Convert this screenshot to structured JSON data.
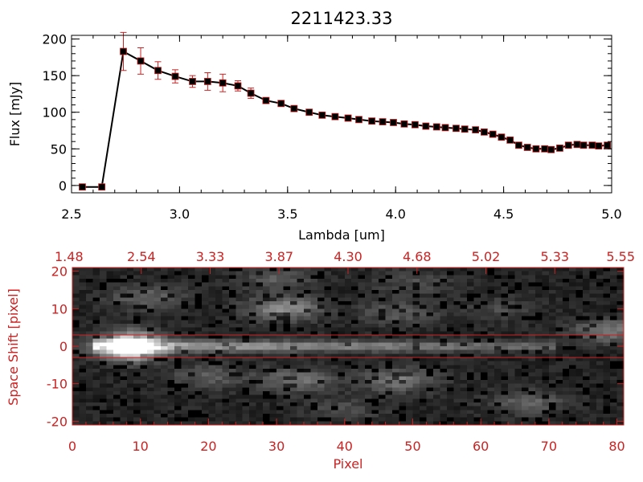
{
  "chart_data": [
    {
      "type": "line",
      "title": "2211423.33",
      "xlabel": "Lambda [um]",
      "ylabel": "Flux [mJy]",
      "xlim": [
        2.5,
        5.0
      ],
      "ylim": [
        -10,
        205
      ],
      "x_ticks": [
        "2.5",
        "3.0",
        "3.5",
        "4.0",
        "4.5",
        "5.0"
      ],
      "y_ticks": [
        "0",
        "50",
        "100",
        "150",
        "200"
      ],
      "grid": false,
      "colors": {
        "line": "#000000",
        "marker": "#000000",
        "error_bar": "#cc2222",
        "marker_edge": "#cc2222"
      },
      "series": [
        {
          "x": [
            2.55,
            2.64,
            2.74,
            2.82,
            2.9,
            2.98,
            3.06,
            3.13,
            3.2,
            3.27,
            3.33,
            3.4,
            3.47,
            3.53,
            3.6,
            3.66,
            3.72,
            3.78,
            3.83,
            3.89,
            3.94,
            3.99,
            4.04,
            4.09,
            4.14,
            4.19,
            4.23,
            4.28,
            4.32,
            4.37,
            4.41,
            4.45,
            4.49,
            4.53,
            4.57,
            4.61,
            4.65,
            4.69,
            4.72,
            4.76,
            4.8,
            4.84,
            4.87,
            4.91,
            4.94,
            4.98
          ],
          "y": [
            -2,
            -2,
            183,
            170,
            157,
            149,
            142,
            142,
            140,
            136,
            126,
            116,
            112,
            105,
            100,
            96,
            94,
            92,
            90,
            88,
            87,
            86,
            84,
            83,
            81,
            80,
            79,
            78,
            77,
            76,
            73,
            70,
            66,
            62,
            55,
            52,
            50,
            50,
            49,
            51,
            55,
            56,
            55,
            55,
            54,
            55
          ],
          "err": [
            0,
            0,
            26,
            18,
            12,
            9,
            8,
            12,
            12,
            7,
            7,
            4,
            3,
            3,
            2,
            2,
            2,
            2,
            2,
            2,
            2,
            2,
            2,
            2,
            2,
            2,
            2,
            2,
            2,
            2,
            2,
            2,
            2,
            2,
            2,
            2,
            2,
            2,
            2,
            2,
            2,
            2,
            2,
            2,
            2,
            2
          ]
        }
      ]
    },
    {
      "type": "heatmap",
      "xlabel": "Pixel",
      "ylabel": "Space Shift [pixel]",
      "xlim": [
        0,
        81
      ],
      "ylim": [
        -21,
        21
      ],
      "x_ticks": [
        "0",
        "10",
        "20",
        "30",
        "40",
        "50",
        "60",
        "70",
        "80"
      ],
      "y_ticks": [
        "-20",
        "-10",
        "0",
        "10",
        "20"
      ],
      "top_ticks": [
        "1.48",
        "2.54",
        "3.33",
        "3.87",
        "4.30",
        "4.68",
        "5.02",
        "5.33",
        "5.55"
      ],
      "colormap": "grayscale",
      "colors": {
        "axes": "#cc2222",
        "extraction_lines": "#cc2222"
      },
      "extraction_window": [
        -3,
        3
      ],
      "trace": {
        "y": 0,
        "x_start": 3,
        "x_end": 71,
        "peak_x": 9
      },
      "blobs": [
        {
          "x": 8,
          "y": 0,
          "amplitude": 1.0
        },
        {
          "x": 11,
          "y": 13,
          "amplitude": 0.45
        },
        {
          "x": 31,
          "y": 10,
          "amplitude": 0.75
        },
        {
          "x": 30,
          "y": 18,
          "amplitude": 0.4
        },
        {
          "x": 48,
          "y": 9,
          "amplitude": 0.4
        },
        {
          "x": 63,
          "y": 10,
          "amplitude": 0.25
        },
        {
          "x": 79,
          "y": 4,
          "amplitude": 0.6
        },
        {
          "x": 20,
          "y": -8,
          "amplitude": 0.4
        },
        {
          "x": 33,
          "y": -9,
          "amplitude": 0.55
        },
        {
          "x": 48,
          "y": -9,
          "amplitude": 0.6
        },
        {
          "x": 67,
          "y": -15,
          "amplitude": 0.45
        },
        {
          "x": 50,
          "y": 17,
          "amplitude": 0.3
        },
        {
          "x": 40,
          "y": -17,
          "amplitude": 0.3
        }
      ]
    }
  ]
}
